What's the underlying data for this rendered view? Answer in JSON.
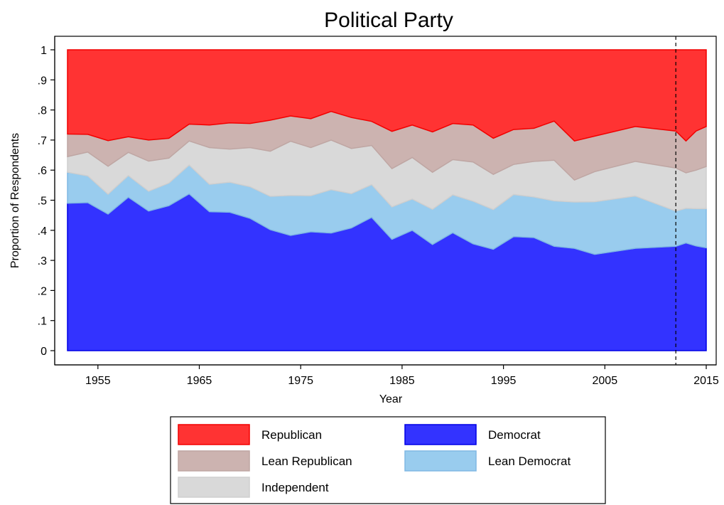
{
  "chart_data": {
    "type": "area",
    "stacked": true,
    "title": "Political Party",
    "xlabel": "Year",
    "ylabel": "Proportion of Respondents",
    "xlim": [
      1952,
      2015
    ],
    "ylim": [
      0,
      1
    ],
    "xticks": [
      1955,
      1965,
      1975,
      1985,
      1995,
      2005,
      2015
    ],
    "yticks": [
      {
        "value": 0,
        "label": "0"
      },
      {
        "value": 0.1,
        "label": ".1"
      },
      {
        "value": 0.2,
        "label": ".2"
      },
      {
        "value": 0.3,
        "label": ".3"
      },
      {
        "value": 0.4,
        "label": ".4"
      },
      {
        "value": 0.5,
        "label": ".5"
      },
      {
        "value": 0.6,
        "label": ".6"
      },
      {
        "value": 0.7,
        "label": ".7"
      },
      {
        "value": 0.8,
        "label": ".8"
      },
      {
        "value": 0.9,
        "label": ".9"
      },
      {
        "value": 1,
        "label": "1"
      }
    ],
    "reference_line_x": 2012,
    "grid": false,
    "legend_position": "bottom",
    "x": [
      1952,
      1954,
      1956,
      1958,
      1960,
      1962,
      1964,
      1966,
      1968,
      1970,
      1972,
      1974,
      1976,
      1978,
      1980,
      1982,
      1984,
      1986,
      1988,
      1990,
      1992,
      1994,
      1996,
      1998,
      2000,
      2002,
      2004,
      2008,
      2012,
      2013,
      2014,
      2015
    ],
    "series": [
      {
        "name": "Democrat",
        "color": "#3333ff",
        "edge": "#0000e6",
        "values": [
          0.49,
          0.492,
          0.454,
          0.51,
          0.464,
          0.482,
          0.521,
          0.462,
          0.46,
          0.44,
          0.402,
          0.383,
          0.395,
          0.391,
          0.408,
          0.443,
          0.37,
          0.4,
          0.353,
          0.392,
          0.355,
          0.337,
          0.379,
          0.376,
          0.347,
          0.34,
          0.32,
          0.34,
          0.347,
          0.358,
          0.348,
          0.342
        ]
      },
      {
        "name": "Lean Democrat",
        "color": "#99ccee",
        "edge": "#80b8e4",
        "values": [
          0.103,
          0.089,
          0.066,
          0.072,
          0.066,
          0.075,
          0.096,
          0.091,
          0.1,
          0.105,
          0.111,
          0.133,
          0.12,
          0.144,
          0.114,
          0.109,
          0.108,
          0.104,
          0.117,
          0.126,
          0.142,
          0.132,
          0.14,
          0.135,
          0.151,
          0.154,
          0.175,
          0.174,
          0.117,
          0.115,
          0.124,
          0.13
        ]
      },
      {
        "name": "Independent",
        "color": "#d9d9d9",
        "edge": "#cfcfcf",
        "values": [
          0.052,
          0.079,
          0.093,
          0.077,
          0.1,
          0.083,
          0.08,
          0.122,
          0.11,
          0.13,
          0.15,
          0.18,
          0.16,
          0.165,
          0.15,
          0.13,
          0.127,
          0.138,
          0.123,
          0.117,
          0.13,
          0.117,
          0.1,
          0.118,
          0.135,
          0.073,
          0.1,
          0.115,
          0.143,
          0.118,
          0.128,
          0.14
        ]
      },
      {
        "name": "Lean Republican",
        "color": "#ccb3b0",
        "edge": "#bfa6a3",
        "values": [
          0.075,
          0.059,
          0.085,
          0.052,
          0.07,
          0.066,
          0.056,
          0.075,
          0.087,
          0.08,
          0.103,
          0.084,
          0.096,
          0.095,
          0.103,
          0.08,
          0.124,
          0.108,
          0.134,
          0.12,
          0.123,
          0.12,
          0.116,
          0.11,
          0.13,
          0.13,
          0.118,
          0.116,
          0.123,
          0.106,
          0.13,
          0.133
        ]
      },
      {
        "name": "Republican",
        "color": "#ff3333",
        "edge": "#f20000",
        "values": [
          0.28,
          0.281,
          0.302,
          0.289,
          0.3,
          0.294,
          0.247,
          0.25,
          0.243,
          0.245,
          0.234,
          0.22,
          0.229,
          0.205,
          0.225,
          0.238,
          0.271,
          0.25,
          0.273,
          0.245,
          0.25,
          0.294,
          0.265,
          0.261,
          0.237,
          0.303,
          0.287,
          0.255,
          0.27,
          0.303,
          0.27,
          0.255
        ]
      }
    ]
  }
}
